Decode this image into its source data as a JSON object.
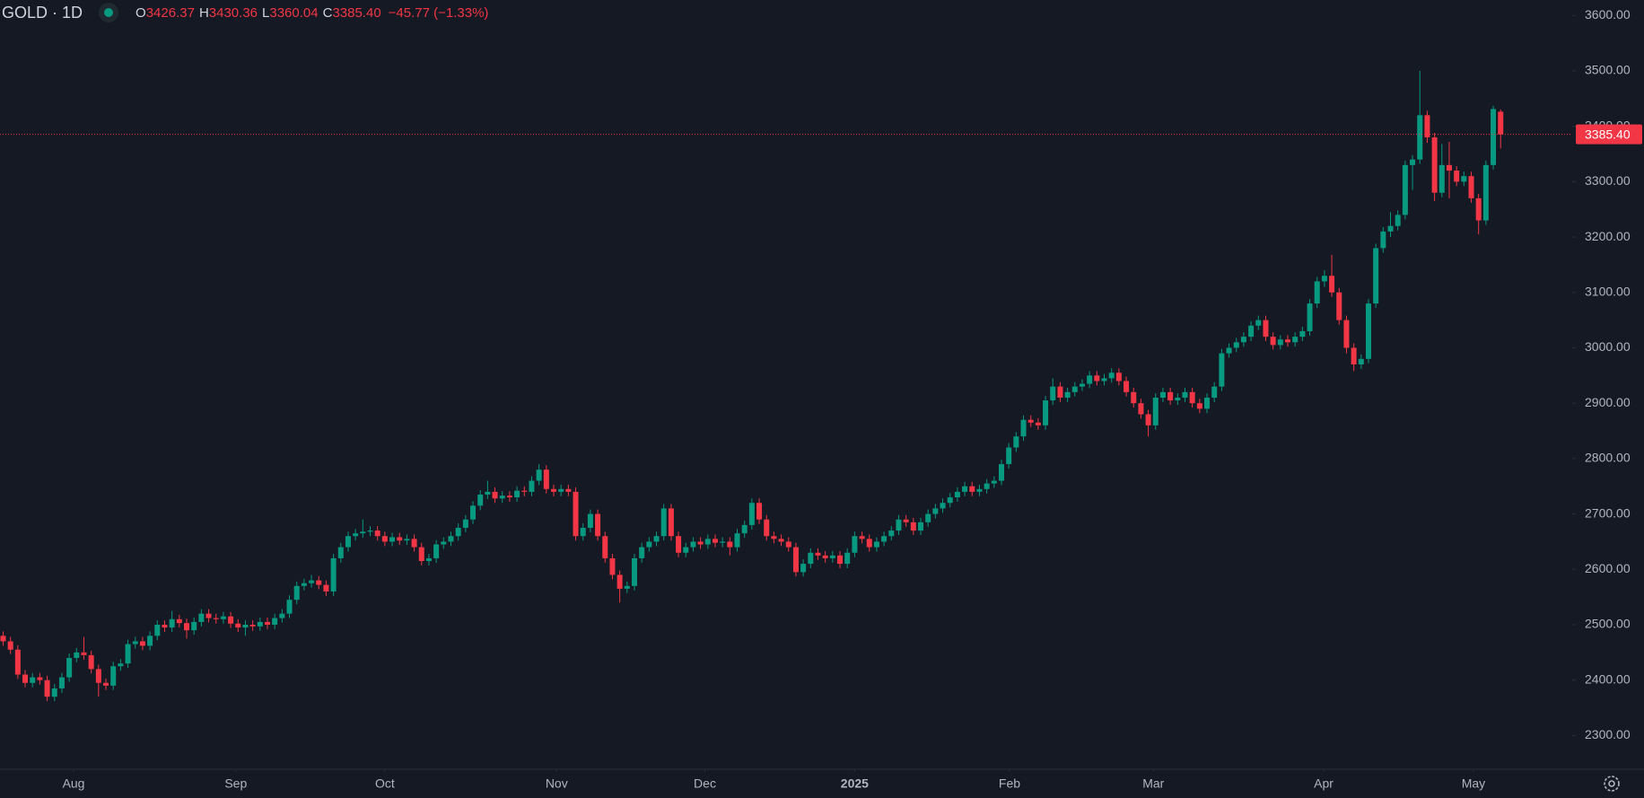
{
  "header": {
    "symbol": "GOLD · 1D",
    "ohlc": [
      {
        "label": "O",
        "value": 3426.37
      },
      {
        "label": "H",
        "value": 3430.36
      },
      {
        "label": "L",
        "value": 3360.04
      },
      {
        "label": "C",
        "value": 3385.4,
        "value_label": "3385.40"
      }
    ],
    "change": {
      "value": -45.77,
      "label": "−45.77 (−1.33%)"
    }
  },
  "chart_data": {
    "type": "candlestick",
    "up_color": "#089981",
    "down_color": "#f23645",
    "grid": false,
    "ylim": [
      2239,
      3628
    ],
    "yticks": [
      {
        "value": 2300,
        "label": "2300.00"
      },
      {
        "value": 2400,
        "label": "2400.00"
      },
      {
        "value": 2500,
        "label": "2500.00"
      },
      {
        "value": 2600,
        "label": "2600.00"
      },
      {
        "value": 2700,
        "label": "2700.00"
      },
      {
        "value": 2800,
        "label": "2800.00"
      },
      {
        "value": 2900,
        "label": "2900.00"
      },
      {
        "value": 3000,
        "label": "3000.00"
      },
      {
        "value": 3100,
        "label": "3100.00"
      },
      {
        "value": 3200,
        "label": "3200.00"
      },
      {
        "value": 3300,
        "label": "3300.00"
      },
      {
        "value": 3400,
        "label": "3400.00"
      },
      {
        "value": 3500,
        "label": "3500.00"
      },
      {
        "value": 3600,
        "label": "3600.00"
      }
    ],
    "xticks": [
      {
        "value": 9.6,
        "label": "Aug"
      },
      {
        "value": 31.7,
        "label": "Sep"
      },
      {
        "value": 52,
        "label": "Oct"
      },
      {
        "value": 75.4,
        "label": "Nov"
      },
      {
        "value": 95.6,
        "label": "Dec"
      },
      {
        "value": 116,
        "label": "2025"
      },
      {
        "value": 137.1,
        "label": "Feb"
      },
      {
        "value": 156.7,
        "label": "Mar"
      },
      {
        "value": 179.9,
        "label": "Apr"
      },
      {
        "value": 200.3,
        "label": "May"
      }
    ],
    "last_price": {
      "value": 3385.4,
      "label": "3385.40"
    },
    "candles": [
      [
        2480,
        2488,
        2462,
        2470
      ],
      [
        2470,
        2478,
        2447,
        2455
      ],
      [
        2455,
        2463,
        2402,
        2410
      ],
      [
        2410,
        2418,
        2387,
        2395
      ],
      [
        2395,
        2413,
        2387,
        2405
      ],
      [
        2405,
        2413,
        2392,
        2400
      ],
      [
        2400,
        2408,
        2362,
        2370
      ],
      [
        2370,
        2393,
        2362,
        2385
      ],
      [
        2385,
        2413,
        2377,
        2405
      ],
      [
        2405,
        2448,
        2397,
        2440
      ],
      [
        2440,
        2458,
        2432,
        2450
      ],
      [
        2450,
        2478,
        2437,
        2445
      ],
      [
        2445,
        2453,
        2412,
        2420
      ],
      [
        2420,
        2428,
        2370,
        2395
      ],
      [
        2395,
        2403,
        2382,
        2390
      ],
      [
        2390,
        2433,
        2382,
        2425
      ],
      [
        2425,
        2438,
        2417,
        2430
      ],
      [
        2430,
        2473,
        2422,
        2465
      ],
      [
        2465,
        2478,
        2457,
        2470
      ],
      [
        2470,
        2478,
        2454,
        2462
      ],
      [
        2462,
        2488,
        2454,
        2480
      ],
      [
        2480,
        2508,
        2472,
        2500
      ],
      [
        2500,
        2508,
        2487,
        2495
      ],
      [
        2495,
        2525,
        2487,
        2510
      ],
      [
        2510,
        2518,
        2495,
        2503
      ],
      [
        2503,
        2511,
        2475,
        2490
      ],
      [
        2490,
        2513,
        2482,
        2505
      ],
      [
        2505,
        2528,
        2497,
        2520
      ],
      [
        2520,
        2528,
        2504,
        2512
      ],
      [
        2512,
        2520,
        2502,
        2510
      ],
      [
        2510,
        2523,
        2502,
        2515
      ],
      [
        2515,
        2523,
        2494,
        2502
      ],
      [
        2502,
        2510,
        2487,
        2495
      ],
      [
        2495,
        2508,
        2480,
        2500
      ],
      [
        2500,
        2508,
        2489,
        2497
      ],
      [
        2497,
        2513,
        2489,
        2505
      ],
      [
        2505,
        2513,
        2492,
        2500
      ],
      [
        2500,
        2520,
        2492,
        2512
      ],
      [
        2512,
        2528,
        2504,
        2520
      ],
      [
        2520,
        2553,
        2512,
        2545
      ],
      [
        2545,
        2578,
        2537,
        2570
      ],
      [
        2570,
        2583,
        2562,
        2575
      ],
      [
        2575,
        2590,
        2567,
        2580
      ],
      [
        2580,
        2588,
        2564,
        2572
      ],
      [
        2572,
        2580,
        2552,
        2560
      ],
      [
        2560,
        2628,
        2552,
        2620
      ],
      [
        2620,
        2648,
        2612,
        2640
      ],
      [
        2640,
        2668,
        2632,
        2660
      ],
      [
        2660,
        2673,
        2652,
        2665
      ],
      [
        2665,
        2690,
        2657,
        2668
      ],
      [
        2668,
        2678,
        2660,
        2670
      ],
      [
        2670,
        2678,
        2652,
        2660
      ],
      [
        2660,
        2668,
        2642,
        2650
      ],
      [
        2650,
        2666,
        2642,
        2658
      ],
      [
        2658,
        2666,
        2644,
        2652
      ],
      [
        2652,
        2663,
        2644,
        2655
      ],
      [
        2655,
        2663,
        2632,
        2640
      ],
      [
        2640,
        2648,
        2607,
        2615
      ],
      [
        2615,
        2628,
        2607,
        2620
      ],
      [
        2620,
        2653,
        2612,
        2645
      ],
      [
        2645,
        2658,
        2637,
        2650
      ],
      [
        2650,
        2668,
        2642,
        2660
      ],
      [
        2660,
        2683,
        2652,
        2675
      ],
      [
        2675,
        2698,
        2667,
        2690
      ],
      [
        2690,
        2723,
        2682,
        2715
      ],
      [
        2715,
        2743,
        2707,
        2735
      ],
      [
        2735,
        2760,
        2727,
        2740
      ],
      [
        2740,
        2748,
        2720,
        2728
      ],
      [
        2728,
        2741,
        2720,
        2733
      ],
      [
        2733,
        2741,
        2722,
        2730
      ],
      [
        2730,
        2750,
        2722,
        2742
      ],
      [
        2742,
        2750,
        2732,
        2740
      ],
      [
        2740,
        2768,
        2732,
        2760
      ],
      [
        2760,
        2790,
        2752,
        2780
      ],
      [
        2780,
        2788,
        2737,
        2745
      ],
      [
        2745,
        2753,
        2732,
        2740
      ],
      [
        2740,
        2753,
        2732,
        2745
      ],
      [
        2745,
        2753,
        2732,
        2740
      ],
      [
        2740,
        2748,
        2652,
        2660
      ],
      [
        2660,
        2683,
        2652,
        2675
      ],
      [
        2675,
        2708,
        2667,
        2700
      ],
      [
        2700,
        2708,
        2652,
        2660
      ],
      [
        2660,
        2668,
        2612,
        2620
      ],
      [
        2620,
        2628,
        2582,
        2590
      ],
      [
        2590,
        2598,
        2540,
        2565
      ],
      [
        2565,
        2578,
        2557,
        2570
      ],
      [
        2570,
        2628,
        2562,
        2620
      ],
      [
        2620,
        2648,
        2612,
        2640
      ],
      [
        2640,
        2658,
        2632,
        2650
      ],
      [
        2650,
        2668,
        2642,
        2660
      ],
      [
        2660,
        2718,
        2652,
        2710
      ],
      [
        2710,
        2718,
        2652,
        2660
      ],
      [
        2660,
        2668,
        2622,
        2630
      ],
      [
        2630,
        2648,
        2622,
        2640
      ],
      [
        2640,
        2658,
        2632,
        2650
      ],
      [
        2650,
        2658,
        2637,
        2645
      ],
      [
        2645,
        2663,
        2637,
        2655
      ],
      [
        2655,
        2663,
        2640,
        2648
      ],
      [
        2648,
        2658,
        2640,
        2650
      ],
      [
        2650,
        2658,
        2625,
        2640
      ],
      [
        2640,
        2673,
        2632,
        2665
      ],
      [
        2665,
        2688,
        2657,
        2680
      ],
      [
        2680,
        2728,
        2672,
        2720
      ],
      [
        2720,
        2728,
        2682,
        2690
      ],
      [
        2690,
        2698,
        2652,
        2660
      ],
      [
        2660,
        2668,
        2647,
        2655
      ],
      [
        2655,
        2663,
        2642,
        2650
      ],
      [
        2650,
        2658,
        2632,
        2640
      ],
      [
        2640,
        2648,
        2587,
        2595
      ],
      [
        2595,
        2618,
        2587,
        2610
      ],
      [
        2610,
        2638,
        2602,
        2630
      ],
      [
        2630,
        2638,
        2617,
        2625
      ],
      [
        2625,
        2633,
        2612,
        2620
      ],
      [
        2620,
        2633,
        2612,
        2625
      ],
      [
        2625,
        2633,
        2602,
        2610
      ],
      [
        2610,
        2638,
        2602,
        2630
      ],
      [
        2630,
        2668,
        2622,
        2660
      ],
      [
        2660,
        2668,
        2647,
        2655
      ],
      [
        2655,
        2663,
        2632,
        2640
      ],
      [
        2640,
        2658,
        2632,
        2650
      ],
      [
        2650,
        2668,
        2642,
        2660
      ],
      [
        2660,
        2678,
        2652,
        2670
      ],
      [
        2670,
        2698,
        2662,
        2690
      ],
      [
        2690,
        2698,
        2677,
        2685
      ],
      [
        2685,
        2693,
        2662,
        2670
      ],
      [
        2670,
        2693,
        2662,
        2685
      ],
      [
        2685,
        2708,
        2677,
        2700
      ],
      [
        2700,
        2718,
        2692,
        2710
      ],
      [
        2710,
        2728,
        2702,
        2720
      ],
      [
        2720,
        2738,
        2712,
        2730
      ],
      [
        2730,
        2748,
        2722,
        2740
      ],
      [
        2740,
        2758,
        2732,
        2750
      ],
      [
        2750,
        2758,
        2732,
        2740
      ],
      [
        2740,
        2753,
        2732,
        2745
      ],
      [
        2745,
        2763,
        2737,
        2755
      ],
      [
        2755,
        2768,
        2747,
        2760
      ],
      [
        2760,
        2798,
        2752,
        2790
      ],
      [
        2790,
        2828,
        2782,
        2820
      ],
      [
        2820,
        2848,
        2812,
        2840
      ],
      [
        2840,
        2878,
        2832,
        2870
      ],
      [
        2870,
        2878,
        2857,
        2865
      ],
      [
        2865,
        2873,
        2852,
        2860
      ],
      [
        2860,
        2913,
        2852,
        2905
      ],
      [
        2905,
        2945,
        2897,
        2930
      ],
      [
        2930,
        2938,
        2902,
        2910
      ],
      [
        2910,
        2928,
        2902,
        2920
      ],
      [
        2920,
        2938,
        2912,
        2930
      ],
      [
        2930,
        2943,
        2922,
        2935
      ],
      [
        2935,
        2958,
        2927,
        2950
      ],
      [
        2950,
        2958,
        2932,
        2940
      ],
      [
        2940,
        2953,
        2932,
        2945
      ],
      [
        2945,
        2963,
        2937,
        2955
      ],
      [
        2955,
        2963,
        2932,
        2940
      ],
      [
        2940,
        2948,
        2912,
        2920
      ],
      [
        2920,
        2928,
        2892,
        2900
      ],
      [
        2900,
        2908,
        2872,
        2880
      ],
      [
        2880,
        2888,
        2840,
        2860
      ],
      [
        2860,
        2918,
        2852,
        2910
      ],
      [
        2910,
        2928,
        2902,
        2920
      ],
      [
        2920,
        2928,
        2897,
        2905
      ],
      [
        2905,
        2918,
        2897,
        2910
      ],
      [
        2910,
        2928,
        2902,
        2920
      ],
      [
        2920,
        2928,
        2892,
        2900
      ],
      [
        2900,
        2908,
        2882,
        2890
      ],
      [
        2890,
        2918,
        2882,
        2910
      ],
      [
        2910,
        2938,
        2902,
        2930
      ],
      [
        2930,
        2998,
        2922,
        2990
      ],
      [
        2990,
        3008,
        2982,
        3000
      ],
      [
        3000,
        3018,
        2992,
        3010
      ],
      [
        3010,
        3028,
        3002,
        3020
      ],
      [
        3020,
        3048,
        3012,
        3040
      ],
      [
        3040,
        3058,
        3032,
        3050
      ],
      [
        3050,
        3058,
        3012,
        3020
      ],
      [
        3020,
        3028,
        2997,
        3005
      ],
      [
        3005,
        3023,
        2997,
        3015
      ],
      [
        3015,
        3023,
        3002,
        3010
      ],
      [
        3010,
        3028,
        3002,
        3020
      ],
      [
        3020,
        3038,
        3012,
        3030
      ],
      [
        3030,
        3088,
        3022,
        3080
      ],
      [
        3080,
        3128,
        3072,
        3120
      ],
      [
        3120,
        3140,
        3110,
        3130
      ],
      [
        3130,
        3168,
        3092,
        3100
      ],
      [
        3100,
        3108,
        3042,
        3050
      ],
      [
        3050,
        3058,
        2990,
        3000
      ],
      [
        3000,
        3008,
        2958,
        2970
      ],
      [
        2970,
        2988,
        2962,
        2980
      ],
      [
        2980,
        3088,
        2972,
        3080
      ],
      [
        3080,
        3188,
        3072,
        3180
      ],
      [
        3180,
        3218,
        3172,
        3210
      ],
      [
        3210,
        3245,
        3200,
        3220
      ],
      [
        3220,
        3248,
        3212,
        3240
      ],
      [
        3240,
        3338,
        3232,
        3330
      ],
      [
        3330,
        3348,
        3285,
        3340
      ],
      [
        3340,
        3500,
        3332,
        3420
      ],
      [
        3420,
        3428,
        3370,
        3380
      ],
      [
        3380,
        3388,
        3265,
        3280
      ],
      [
        3280,
        3368,
        3272,
        3330
      ],
      [
        3330,
        3372,
        3270,
        3320
      ],
      [
        3320,
        3328,
        3292,
        3300
      ],
      [
        3300,
        3318,
        3292,
        3310
      ],
      [
        3310,
        3318,
        3262,
        3270
      ],
      [
        3270,
        3278,
        3205,
        3230
      ],
      [
        3230,
        3338,
        3222,
        3330
      ],
      [
        3330,
        3437,
        3322,
        3431.17
      ],
      [
        3426.37,
        3430.36,
        3360.04,
        3385.4
      ]
    ]
  }
}
